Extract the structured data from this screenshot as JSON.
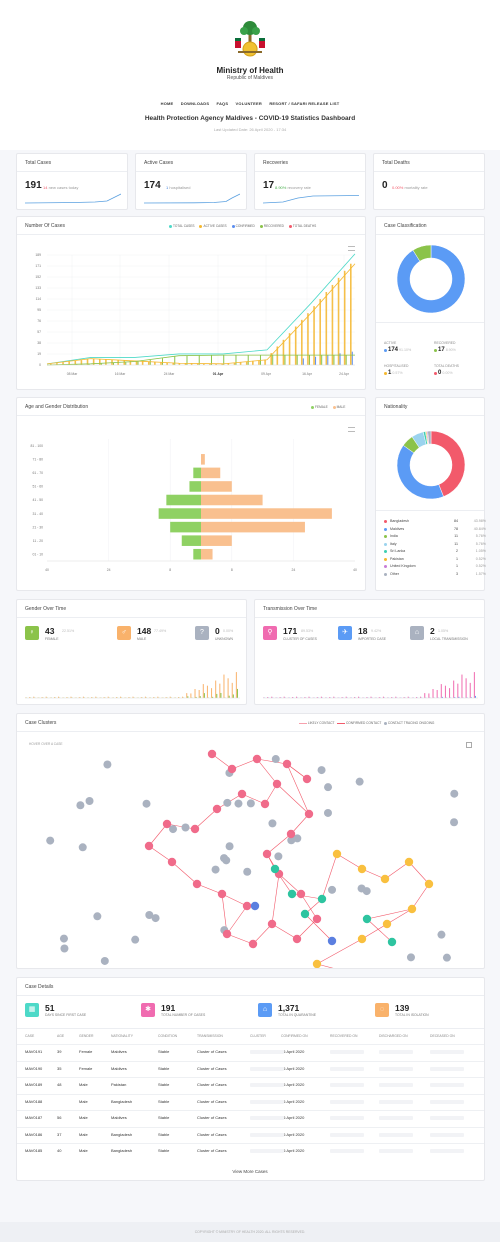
{
  "header": {
    "ministry": "Ministry of Health",
    "republic": "Republic of Maldives",
    "nav": [
      "HOME",
      "DOWNLOADS",
      "FAQS",
      "VOLUNTEER",
      "RESORT / SAFARI RELEASE LIST"
    ],
    "title": "Health Protection Agency Maldives - COVID-19 Statistics Dashboard",
    "updated": "Last Updated Date: 26 April 2020 - 17:34"
  },
  "summary": {
    "total_cases": {
      "label": "Total Cases",
      "value": "191",
      "extra_value": "14",
      "extra_text": "new cases today"
    },
    "active_cases": {
      "label": "Active Cases",
      "value": "174",
      "extra_value": "1",
      "extra_text": "hospitalised"
    },
    "recoveries": {
      "label": "Recoveries",
      "value": "17",
      "extra_value": "8.90%",
      "extra_text": "recovery rate"
    },
    "total_deaths": {
      "label": "Total Deaths",
      "value": "0",
      "extra_value": "0.00%",
      "extra_text": "mortality rate"
    }
  },
  "number_of_cases": {
    "title": "Number Of Cases",
    "legend": [
      {
        "label": "TOTAL CASES",
        "color": "#4dd9c8"
      },
      {
        "label": "ACTIVE CASES",
        "color": "#f5b82e"
      },
      {
        "label": "CONFIRMED",
        "color": "#5b8def"
      },
      {
        "label": "RECOVERED",
        "color": "#8bc34a"
      },
      {
        "label": "TOTAL DEATHS",
        "color": "#f25a6b"
      }
    ],
    "yticks": [
      "189",
      "171",
      "152",
      "133",
      "114",
      "95",
      "76",
      "57",
      "38",
      "19",
      "0"
    ],
    "xticks": [
      "08 Mar",
      "16 Mar",
      "24 Mar",
      "01 Apr",
      "09 Apr",
      "16 Apr",
      "24 Apr"
    ]
  },
  "classification": {
    "title": "Case Classification",
    "items": [
      {
        "label": "ACTIVE",
        "value": "174",
        "pct": "91.10%",
        "color": "#5b9bf5"
      },
      {
        "label": "RECOVERED",
        "value": "17",
        "pct": "8.90%",
        "color": "#8bc34a"
      },
      {
        "label": "HOSPITALISED",
        "value": "1",
        "pct": "0.57%",
        "color": "#f5b82e"
      },
      {
        "label": "TOTAL DEATHS",
        "value": "0",
        "pct": "0.00%",
        "color": "#f25a6b"
      }
    ]
  },
  "age_gender": {
    "title": "Age and Gender Distribution",
    "legend": [
      {
        "label": "FEMALE",
        "color": "#8fd163"
      },
      {
        "label": "MALE",
        "color": "#f9c08f"
      }
    ],
    "yticks": [
      "81 - 100",
      "71 - 80",
      "61 - 70",
      "51 - 60",
      "41 - 50",
      "31 - 40",
      "21 - 30",
      "11 - 20",
      "01 - 10"
    ],
    "xticks": [
      "40",
      "24",
      "8",
      "8",
      "24",
      "40"
    ]
  },
  "nationality": {
    "title": "Nationality",
    "rows": [
      {
        "name": "Bangladesh",
        "count": "84",
        "pct": "43.98%",
        "color": "#f25a6b"
      },
      {
        "name": "Maldives",
        "count": "78",
        "pct": "40.84%",
        "color": "#5b9bf5"
      },
      {
        "name": "India",
        "count": "11",
        "pct": "5.76%",
        "color": "#8bc34a"
      },
      {
        "name": "Italy",
        "count": "11",
        "pct": "5.76%",
        "color": "#9bd3ee"
      },
      {
        "name": "Sri Lanka",
        "count": "2",
        "pct": "1.05%",
        "color": "#3ecfb2"
      },
      {
        "name": "Pakistan",
        "count": "1",
        "pct": "0.52%",
        "color": "#f5b82e"
      },
      {
        "name": "United Kingdom",
        "count": "1",
        "pct": "0.52%",
        "color": "#c77dd6"
      },
      {
        "name": "Other",
        "count": "3",
        "pct": "1.57%",
        "color": "#aab2c0"
      }
    ]
  },
  "gender_over_time": {
    "title": "Gender Over Time",
    "items": [
      {
        "value": "43",
        "pct": "22.51%",
        "label": "FEMALE",
        "color": "#8bc34a",
        "icon": "♀"
      },
      {
        "value": "148",
        "pct": "77.49%",
        "label": "MALE",
        "color": "#f9b26b",
        "icon": "♂"
      },
      {
        "value": "0",
        "pct": "0.00%",
        "label": "UNKNOWN",
        "color": "#aab2c0",
        "icon": "?"
      }
    ]
  },
  "transmission": {
    "title": "Transmission Over Time",
    "items": [
      {
        "value": "171",
        "pct": "89.53%",
        "label": "CLUSTER OF CASES",
        "color": "#f06bb0",
        "icon": "⚲"
      },
      {
        "value": "18",
        "pct": "9.42%",
        "label": "IMPORTED CASE",
        "color": "#5b9bf5",
        "icon": "✈"
      },
      {
        "value": "2",
        "pct": "1.05%",
        "label": "LOCAL TRANSMISSION",
        "color": "#aab2c0",
        "icon": "⌂"
      }
    ]
  },
  "clusters": {
    "title": "Case Clusters",
    "hover_hint": "HOVER OVER A CASE",
    "legend": [
      {
        "label": "LIKELY CONTACT",
        "color": "#f25a6b"
      },
      {
        "label": "CONFIRMED CONTACT",
        "color": "#f25a6b"
      },
      {
        "label": "CONTACT TRACING ONGOING",
        "color": "#aab2c0"
      }
    ]
  },
  "case_details": {
    "title": "Case Details",
    "stats": [
      {
        "value": "51",
        "label": "DAYS SINCE FIRST CASE",
        "color": "#4dd9c8"
      },
      {
        "value": "191",
        "label": "TOTAL NUMBER OF CASES",
        "color": "#f06bb0"
      },
      {
        "value": "1,371",
        "label": "TOTAL IN QUARANTINE",
        "color": "#5b9bf5"
      },
      {
        "value": "139",
        "label": "TOTAL IN ISOLATION",
        "color": "#f9b26b"
      }
    ],
    "columns": [
      "CASE",
      "AGE",
      "GENDER",
      "NATIONALITY",
      "CONDITION",
      "TRANSMISSION",
      "CLUSTER",
      "CONFIRMED ON",
      "RECOVERED ON",
      "DISCHARGED ON",
      "DECEASED ON"
    ],
    "rows": [
      [
        "MAV0191",
        "39",
        "Female",
        "Maldives",
        "Stable",
        "Cluster of Cases",
        "26 April 2020"
      ],
      [
        "MAV0190",
        "35",
        "Female",
        "Maldives",
        "Stable",
        "Cluster of Cases",
        "26 April 2020"
      ],
      [
        "MAV0189",
        "48",
        "Male",
        "Pakistan",
        "Stable",
        "Cluster of Cases",
        "26 April 2020"
      ],
      [
        "MAV0188",
        "",
        "Male",
        "Bangladesh",
        "Stable",
        "Cluster of Cases",
        "26 April 2020"
      ],
      [
        "MAV0187",
        "56",
        "Male",
        "Maldives",
        "Stable",
        "Cluster of Cases",
        "26 April 2020"
      ],
      [
        "MAV0186",
        "37",
        "Male",
        "Bangladesh",
        "Stable",
        "Cluster of Cases",
        "26 April 2020"
      ],
      [
        "MAV0185",
        "40",
        "Male",
        "Bangladesh",
        "Stable",
        "Cluster of Cases",
        "26 April 2020"
      ]
    ],
    "more_label": "View More Cases"
  },
  "footer": "COPYRIGHT © MINISTRY OF HEALTH 2020. ALL RIGHTS RESERVED.",
  "chart_data": [
    {
      "type": "line",
      "title": "Number Of Cases",
      "x": [
        "08 Mar",
        "16 Mar",
        "24 Mar",
        "01 Apr",
        "09 Apr",
        "16 Apr",
        "24 Apr",
        "26 Apr"
      ],
      "series": [
        {
          "name": "TOTAL CASES",
          "values": [
            2,
            13,
            13,
            19,
            19,
            26,
            106,
            191
          ]
        },
        {
          "name": "ACTIVE CASES",
          "values": [
            2,
            11,
            7,
            3,
            2,
            9,
            89,
            174
          ]
        },
        {
          "name": "RECOVERED",
          "values": [
            0,
            2,
            6,
            16,
            17,
            17,
            17,
            17
          ]
        }
      ],
      "ylim": [
        0,
        189
      ]
    },
    {
      "type": "pie",
      "title": "Case Classification",
      "categories": [
        "ACTIVE",
        "RECOVERED",
        "TOTAL DEATHS"
      ],
      "values": [
        174,
        17,
        0
      ]
    },
    {
      "type": "bar",
      "title": "Age and Gender Distribution",
      "categories": [
        "81 - 100",
        "71 - 80",
        "61 - 70",
        "51 - 60",
        "41 - 50",
        "31 - 40",
        "21 - 30",
        "11 - 20",
        "01 - 10"
      ],
      "series": [
        {
          "name": "FEMALE",
          "values": [
            0,
            0,
            2,
            3,
            9,
            11,
            8,
            5,
            2
          ]
        },
        {
          "name": "MALE",
          "values": [
            0,
            1,
            5,
            8,
            16,
            34,
            27,
            8,
            3
          ]
        }
      ]
    },
    {
      "type": "pie",
      "title": "Nationality",
      "categories": [
        "Bangladesh",
        "Maldives",
        "India",
        "Italy",
        "Sri Lanka",
        "Pakistan",
        "United Kingdom",
        "Other"
      ],
      "values": [
        84,
        78,
        11,
        11,
        2,
        1,
        1,
        3
      ]
    }
  ]
}
